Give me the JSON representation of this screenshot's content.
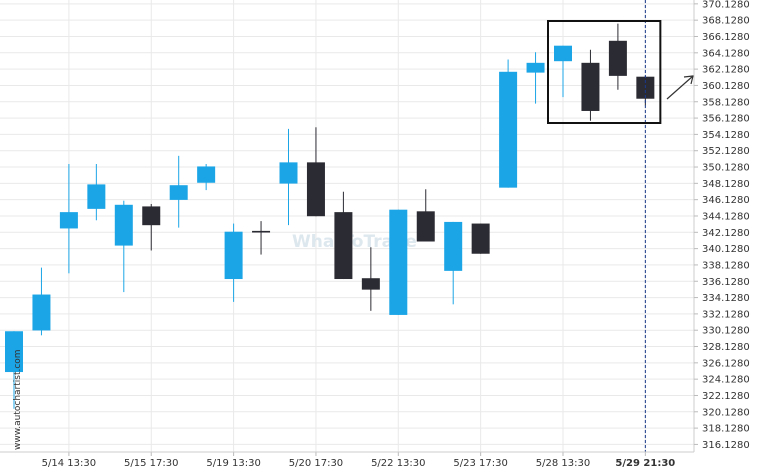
{
  "site_label": "www.autochartist.com",
  "watermark": "WhatToTrade",
  "colors": {
    "bullish": "#1ba5e6",
    "bearish": "#2b2b33",
    "grid": "#e9e9e9",
    "vline": "#1a3a8a",
    "pattern_box": "#111111",
    "arrow": "#333333"
  },
  "chart_data": {
    "type": "candlestick",
    "ylim": [
      315.2,
      370.6
    ],
    "y_ticks": [
      "316.1280",
      "318.1280",
      "320.1280",
      "322.1280",
      "324.1280",
      "326.1280",
      "328.1280",
      "330.1280",
      "332.1280",
      "334.1280",
      "336.1280",
      "338.1280",
      "340.1280",
      "342.1280",
      "344.1280",
      "346.1280",
      "348.1280",
      "350.1280",
      "352.1280",
      "354.1280",
      "356.1280",
      "358.1280",
      "360.1280",
      "362.1280",
      "364.1280",
      "366.1280",
      "368.1280",
      "370.1280"
    ],
    "x_labels": [
      {
        "label": "5/14 13:30",
        "index": 2
      },
      {
        "label": "5/15 17:30",
        "index": 5
      },
      {
        "label": "5/19 13:30",
        "index": 8
      },
      {
        "label": "5/20 17:30",
        "index": 11
      },
      {
        "label": "5/22 13:30",
        "index": 14
      },
      {
        "label": "5/23 17:30",
        "index": 17
      },
      {
        "label": "5/28 13:30",
        "index": 20
      },
      {
        "label": "5/29 21:30",
        "index": 23,
        "bold": true
      }
    ],
    "candles": [
      {
        "o": 325.0,
        "h": 330.0,
        "l": 320.5,
        "c": 330.0
      },
      {
        "o": 330.1,
        "h": 337.8,
        "l": 329.5,
        "c": 334.5
      },
      {
        "o": 342.6,
        "h": 350.5,
        "l": 337.1,
        "c": 344.6
      },
      {
        "o": 345.0,
        "h": 350.5,
        "l": 343.6,
        "c": 348.0
      },
      {
        "o": 340.5,
        "h": 346.0,
        "l": 334.8,
        "c": 345.5
      },
      {
        "o": 345.3,
        "h": 345.6,
        "l": 339.9,
        "c": 343.0
      },
      {
        "o": 346.1,
        "h": 351.5,
        "l": 342.7,
        "c": 347.9
      },
      {
        "o": 348.2,
        "h": 350.5,
        "l": 347.3,
        "c": 350.2
      },
      {
        "o": 336.4,
        "h": 343.2,
        "l": 333.6,
        "c": 342.2
      },
      {
        "o": 342.3,
        "h": 343.5,
        "l": 339.4,
        "c": 342.1
      },
      {
        "o": 348.1,
        "h": 354.8,
        "l": 343.0,
        "c": 350.7
      },
      {
        "o": 350.7,
        "h": 355.0,
        "l": 344.1,
        "c": 344.1
      },
      {
        "o": 344.6,
        "h": 347.1,
        "l": 336.4,
        "c": 336.4
      },
      {
        "o": 336.5,
        "h": 340.3,
        "l": 332.5,
        "c": 335.1
      },
      {
        "o": 332.0,
        "h": 344.9,
        "l": 332.0,
        "c": 344.9
      },
      {
        "o": 344.7,
        "h": 347.4,
        "l": 341.0,
        "c": 341.0
      },
      {
        "o": 337.4,
        "h": 343.4,
        "l": 333.3,
        "c": 343.4
      },
      {
        "o": 343.2,
        "h": 343.2,
        "l": 339.5,
        "c": 339.5
      },
      {
        "o": 347.6,
        "h": 363.3,
        "l": 347.6,
        "c": 361.8
      },
      {
        "o": 361.7,
        "h": 364.2,
        "l": 357.9,
        "c": 362.9
      },
      {
        "o": 363.1,
        "h": 365.0,
        "l": 358.7,
        "c": 365.0
      },
      {
        "o": 362.9,
        "h": 364.5,
        "l": 355.8,
        "c": 357.0
      },
      {
        "o": 365.6,
        "h": 367.7,
        "l": 359.6,
        "c": 361.3
      },
      {
        "o": 361.2,
        "h": 361.3,
        "l": 357.7,
        "c": 358.5
      }
    ]
  }
}
